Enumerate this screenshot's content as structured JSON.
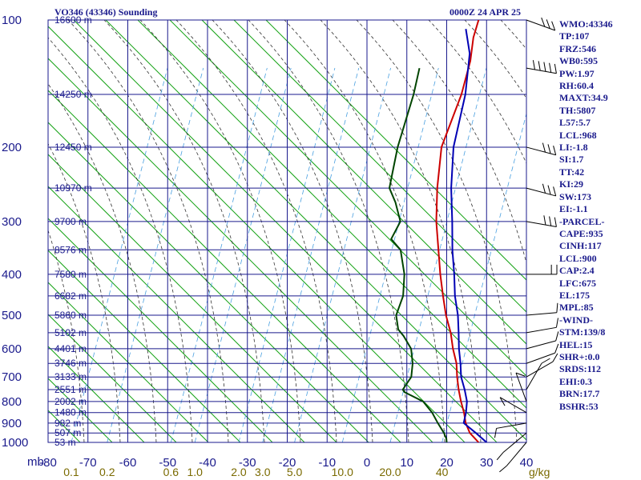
{
  "chart_data": {
    "type": "line",
    "title": "VO346 (43346) Sounding",
    "datetime": "0000Z 24 APR 25",
    "xlabel": "",
    "ylabel": "mb",
    "xlim": [
      -80,
      40
    ],
    "ylim": [
      1000,
      100
    ],
    "y_scale": "log",
    "skew": "skew-T",
    "grid": true,
    "colors": {
      "grid": "#1a1a8c",
      "temperature": "#cc0000",
      "dewpoint": "#004400",
      "parcel": "#0000b4",
      "dry_adiabats": "#16a316",
      "moist_adiabats": "#333333",
      "mixing_ratio": "#4aa0e0",
      "text": "#1a1a8c",
      "mixing_label": "#7a6a00"
    },
    "pressure_ticks": [
      "100",
      "200",
      "300",
      "400",
      "500",
      "600",
      "700",
      "800",
      "900",
      "1000"
    ],
    "pressure_tick_values": [
      100,
      200,
      300,
      400,
      500,
      600,
      700,
      800,
      900,
      1000
    ],
    "temp_ticks": [
      "-80",
      "-70",
      "-60",
      "-50",
      "-40",
      "-30",
      "-20",
      "-10",
      "0",
      "10",
      "20",
      "30",
      "40"
    ],
    "temp_tick_values": [
      -80,
      -70,
      -60,
      -50,
      -40,
      -30,
      -20,
      -10,
      0,
      10,
      20,
      30,
      40
    ],
    "height_labels": [
      {
        "p": 100,
        "text": "16600 m"
      },
      {
        "p": 150,
        "text": "14250 m"
      },
      {
        "p": 200,
        "text": "12450 m"
      },
      {
        "p": 250,
        "text": "10970 m"
      },
      {
        "p": 300,
        "text": "9700 m"
      },
      {
        "p": 350,
        "text": "8576 m"
      },
      {
        "p": 400,
        "text": "7580 m"
      },
      {
        "p": 450,
        "text": "6682 m"
      },
      {
        "p": 500,
        "text": "5860 m"
      },
      {
        "p": 550,
        "text": "5102 m"
      },
      {
        "p": 600,
        "text": "4401 m"
      },
      {
        "p": 650,
        "text": "3746 m"
      },
      {
        "p": 700,
        "text": "3133 m"
      },
      {
        "p": 750,
        "text": "2551 m"
      },
      {
        "p": 800,
        "text": "2002 m"
      },
      {
        "p": 850,
        "text": "1480 m"
      },
      {
        "p": 900,
        "text": "982 m"
      },
      {
        "p": 950,
        "text": "507 m"
      },
      {
        "p": 1000,
        "text": "53 m"
      }
    ],
    "mixing_ratio_labels": [
      {
        "label": "0.1",
        "x": -79
      },
      {
        "label": "0.2",
        "x": -70
      },
      {
        "label": "0.6",
        "x": -54
      },
      {
        "label": "1.0",
        "x": -48
      },
      {
        "label": "2.0",
        "x": -37
      },
      {
        "label": "3.0",
        "x": -31
      },
      {
        "label": "5.0",
        "x": -23
      },
      {
        "label": "10.0",
        "x": -11
      },
      {
        "label": "20.0",
        "x": 1
      },
      {
        "label": "40",
        "x": 14
      }
    ],
    "mixing_ratio_unit": "g/kg",
    "series": [
      {
        "key": "temperature",
        "points": [
          [
            1000,
            28
          ],
          [
            950,
            23.5
          ],
          [
            900,
            20
          ],
          [
            850,
            17
          ],
          [
            800,
            13.5
          ],
          [
            750,
            10
          ],
          [
            700,
            6.5
          ],
          [
            650,
            3
          ],
          [
            600,
            -1.5
          ],
          [
            550,
            -6
          ],
          [
            500,
            -11.5
          ],
          [
            450,
            -17
          ],
          [
            400,
            -23
          ],
          [
            350,
            -29.5
          ],
          [
            300,
            -37
          ],
          [
            250,
            -45
          ],
          [
            200,
            -54
          ],
          [
            150,
            -62
          ],
          [
            125,
            -68
          ],
          [
            110,
            -73
          ],
          [
            100,
            -76
          ]
        ]
      },
      {
        "key": "dewpoint",
        "points": [
          [
            1000,
            20
          ],
          [
            980,
            19
          ],
          [
            950,
            17
          ],
          [
            900,
            13
          ],
          [
            850,
            9
          ],
          [
            800,
            4
          ],
          [
            760,
            -3
          ],
          [
            750,
            -4
          ],
          [
            700,
            -5
          ],
          [
            650,
            -8
          ],
          [
            600,
            -12
          ],
          [
            560,
            -17
          ],
          [
            540,
            -20
          ],
          [
            500,
            -24
          ],
          [
            450,
            -27
          ],
          [
            400,
            -32
          ],
          [
            350,
            -39
          ],
          [
            330,
            -44
          ],
          [
            300,
            -46
          ],
          [
            270,
            -52
          ],
          [
            250,
            -57
          ],
          [
            230,
            -60
          ],
          [
            200,
            -65
          ],
          [
            150,
            -74
          ],
          [
            130,
            -79
          ]
        ]
      },
      {
        "key": "parcel",
        "points": [
          [
            1000,
            30
          ],
          [
            950,
            25
          ],
          [
            900,
            19.5
          ],
          [
            850,
            17.5
          ],
          [
            800,
            15
          ],
          [
            750,
            11.5
          ],
          [
            700,
            7.5
          ],
          [
            650,
            4
          ],
          [
            600,
            0
          ],
          [
            550,
            -4
          ],
          [
            500,
            -8.5
          ],
          [
            450,
            -14
          ],
          [
            400,
            -19.5
          ],
          [
            350,
            -26
          ],
          [
            300,
            -33
          ],
          [
            250,
            -41.5
          ],
          [
            200,
            -51
          ],
          [
            150,
            -61
          ],
          [
            120,
            -70
          ],
          [
            105,
            -77
          ]
        ]
      }
    ],
    "indices": [
      "WMO:43346",
      "TP:107",
      "FRZ:546",
      "WB0:595",
      "PW:1.97",
      "RH:60.4",
      "MAXT:34.9",
      "TH:5807",
      "L57:5.7",
      "LCL:968",
      "LI:-1.8",
      "SI:1.7",
      "TT:42",
      "KI:29",
      "SW:173",
      "EI:-1.1",
      "-PARCEL-",
      "CAPE:935",
      "CINH:117",
      "LCL:900",
      "CAP:2.4",
      "LFC:675",
      "EL:175",
      "MPL:85",
      "-WIND-",
      "STM:139/8",
      "HEL:15",
      "SHR+:0.0",
      "SRDS:112",
      "EHI:0.3",
      "BRN:17.7",
      "BSHR:53"
    ],
    "wind_barbs": [
      {
        "p": 100,
        "dir": 250,
        "speed": 25
      },
      {
        "p": 130,
        "dir": 260,
        "speed": 45
      },
      {
        "p": 200,
        "dir": 255,
        "speed": 25
      },
      {
        "p": 250,
        "dir": 255,
        "speed": 25
      },
      {
        "p": 300,
        "dir": 260,
        "speed": 25
      },
      {
        "p": 400,
        "dir": 270,
        "speed": 15
      },
      {
        "p": 500,
        "dir": 275,
        "speed": 10
      },
      {
        "p": 550,
        "dir": 280,
        "speed": 10
      },
      {
        "p": 600,
        "dir": 285,
        "speed": 10
      },
      {
        "p": 650,
        "dir": 290,
        "speed": 10
      },
      {
        "p": 700,
        "dir": 300,
        "speed": 5
      },
      {
        "p": 750,
        "dir": 330,
        "speed": 5
      },
      {
        "p": 800,
        "dir": 20,
        "speed": 5
      },
      {
        "p": 850,
        "dir": 60,
        "speed": 5
      },
      {
        "p": 900,
        "dir": 100,
        "speed": 5
      },
      {
        "p": 950,
        "dir": 130,
        "speed": 10
      },
      {
        "p": 1000,
        "dir": 140,
        "speed": 10
      }
    ]
  }
}
